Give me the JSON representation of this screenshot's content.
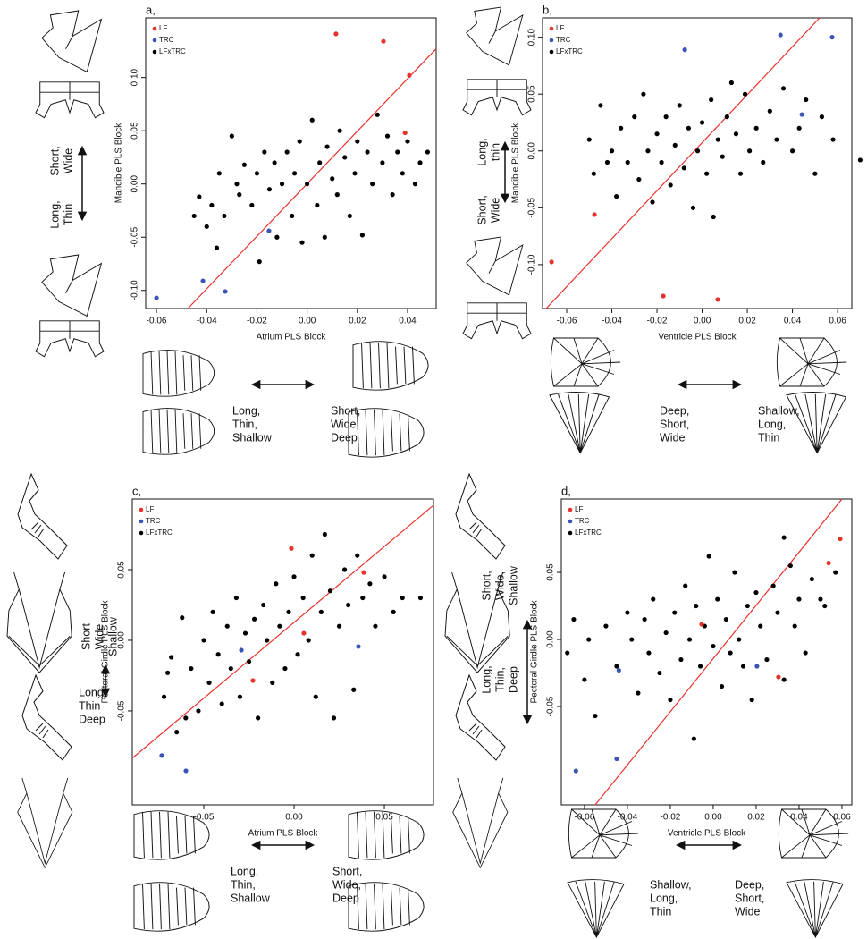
{
  "chart_data": [
    {
      "type": "scatter",
      "title": "a,",
      "xlabel": "Atrium PLS Block",
      "ylabel": "Mandible PLS Block",
      "xlim": [
        -0.0643,
        0.0514
      ],
      "ylim": [
        -0.117,
        0.156
      ],
      "xticks": [
        -0.06,
        -0.04,
        -0.02,
        {
          "value": 0,
          "label": "0.00"
        },
        0.02,
        0.04
      ],
      "yticks": [
        {
          "value": -0.1,
          "label": "-0.10"
        },
        -0.05,
        {
          "value": 0,
          "label": "0.00"
        },
        0.05,
        {
          "value": 0.1,
          "label": "0.10"
        }
      ],
      "legend": "upper left",
      "line": {
        "color": "#e8322c",
        "x": [
          -0.0475,
          0.0514
        ],
        "y": [
          -0.117,
          0.127
        ]
      },
      "series": [
        {
          "name": "LF",
          "color": "#e8322c",
          "x": [
            0.0115,
            0.0304,
            0.0407,
            0.039
          ],
          "values": [
            0.141,
            0.134,
            0.102,
            0.048
          ]
        },
        {
          "name": "TRC",
          "color": "#3a55b4",
          "x": [
            -0.06,
            -0.0415,
            -0.0326,
            -0.0152
          ],
          "values": [
            -0.107,
            -0.091,
            -0.101,
            -0.044
          ]
        },
        {
          "name": "LFxTRC",
          "color": "#000000",
          "x": [
            -0.045,
            -0.043,
            -0.04,
            -0.038,
            -0.036,
            -0.035,
            -0.033,
            -0.03,
            -0.028,
            -0.027,
            -0.025,
            -0.022,
            -0.02,
            -0.019,
            -0.017,
            -0.015,
            -0.013,
            -0.012,
            -0.01,
            -0.008,
            -0.006,
            -0.005,
            -0.003,
            -0.002,
            0,
            0.002,
            0.004,
            0.005,
            0.007,
            0.008,
            0.01,
            0.012,
            0.013,
            0.015,
            0.017,
            0.019,
            0.02,
            0.022,
            0.024,
            0.026,
            0.028,
            0.03,
            0.032,
            0.034,
            0.036,
            0.038,
            0.04,
            0.043,
            0.045,
            0.048
          ],
          "values": [
            -0.03,
            -0.012,
            -0.04,
            -0.02,
            -0.06,
            0.01,
            -0.03,
            0.045,
            0,
            -0.01,
            0.018,
            -0.02,
            0.01,
            -0.073,
            0.03,
            -0.005,
            0.02,
            -0.05,
            0,
            0.03,
            -0.03,
            0.01,
            0.04,
            -0.055,
            0,
            0.06,
            -0.02,
            0.02,
            -0.05,
            0.035,
            0.005,
            -0.01,
            0.05,
            0.025,
            -0.03,
            0.01,
            0.04,
            -0.048,
            0.03,
            0,
            0.065,
            0.02,
            0.045,
            -0.01,
            0.03,
            0.01,
            0.04,
            0,
            0.02,
            0.03
          ]
        }
      ],
      "shape_labels": [
        [
          "Short,",
          "Wide"
        ],
        [
          "Long,",
          "Thin"
        ],
        [
          "Long,",
          "Thin,",
          "Shallow"
        ],
        [
          "Short,",
          "Wide,",
          "Deep"
        ]
      ]
    },
    {
      "type": "scatter",
      "title": "b,",
      "xlabel": "Ventricle PLS Block",
      "ylabel": "Mandible PLS Block",
      "xlim": [
        -0.0707,
        0.0663
      ],
      "ylim": [
        -0.1386,
        0.117
      ],
      "xticks": [
        -0.06,
        -0.04,
        -0.02,
        {
          "value": 0,
          "label": "0.00"
        },
        0.02,
        0.04,
        0.06
      ],
      "yticks": [
        {
          "value": -0.1,
          "label": "-0.10"
        },
        -0.05,
        {
          "value": 0,
          "label": "0.00"
        },
        0.05,
        {
          "value": 0.1,
          "label": "0.10"
        }
      ],
      "legend": "upper left",
      "line": {
        "color": "#e8322c",
        "x": [
          -0.0691,
          0.052
        ],
        "y": [
          -0.1386,
          0.117
        ]
      },
      "series": [
        {
          "name": "LF",
          "color": "#e8322c",
          "x": [
            -0.0667,
            -0.0477,
            -0.0172,
            0.0069
          ],
          "values": [
            -0.0976,
            -0.056,
            -0.1276,
            -0.1307
          ]
        },
        {
          "name": "TRC",
          "color": "#3a55b4",
          "x": [
            -0.0077,
            0.0347,
            0.0576,
            0.0442
          ],
          "values": [
            0.089,
            0.102,
            0.1,
            0.032
          ]
        },
        {
          "name": "LFxTRC",
          "color": "#000000",
          "x": [
            -0.05,
            -0.048,
            -0.045,
            -0.042,
            -0.04,
            -0.038,
            -0.036,
            -0.033,
            -0.03,
            -0.028,
            -0.026,
            -0.024,
            -0.022,
            -0.02,
            -0.018,
            -0.016,
            -0.014,
            -0.012,
            -0.01,
            -0.008,
            -0.006,
            -0.004,
            -0.002,
            0,
            0.002,
            0.004,
            0.005,
            0.007,
            0.009,
            0.011,
            0.013,
            0.015,
            0.017,
            0.019,
            0.021,
            0.024,
            0.027,
            0.03,
            0.033,
            0.036,
            0.04,
            0.043,
            0.046,
            0.05,
            0.053,
            0.058,
            0.07
          ],
          "values": [
            0.01,
            -0.02,
            0.04,
            -0.01,
            0,
            -0.04,
            0.02,
            -0.01,
            0.03,
            -0.025,
            0.05,
            0,
            -0.045,
            0.015,
            -0.01,
            0.03,
            -0.03,
            0.005,
            0.04,
            -0.015,
            0.02,
            -0.05,
            0,
            0.025,
            -0.02,
            0.045,
            -0.058,
            0.01,
            -0.005,
            0.03,
            0.06,
            0.015,
            -0.02,
            0.05,
            0,
            0.02,
            -0.01,
            0.035,
            0.01,
            0.055,
            0,
            0.02,
            0.045,
            -0.02,
            0.03,
            0.01,
            -0.008
          ]
        }
      ],
      "shape_labels": [
        [
          "Long,",
          "thin"
        ],
        [
          "Short,",
          "Wide"
        ],
        [
          "Deep,",
          "Short,",
          "Wide"
        ],
        [
          "Shallow,",
          "Long,",
          "Thin"
        ]
      ]
    },
    {
      "type": "scatter",
      "title": "c,",
      "xlabel": "Atrium PLS Block",
      "ylabel": "Pectoral Girdle PLS Block",
      "xlim": [
        -0.0896,
        0.0772
      ],
      "ylim": [
        -0.1165,
        0.1
      ],
      "xticks": [
        -0.05,
        {
          "value": 0,
          "label": "0.00"
        },
        0.05
      ],
      "yticks": [
        -0.05,
        {
          "value": 0,
          "label": "0.00"
        },
        0.05
      ],
      "legend": "upper left",
      "line": {
        "color": "#e8322c",
        "x": [
          -0.0896,
          0.0772
        ],
        "y": [
          -0.0835,
          0.0956
        ]
      },
      "series": [
        {
          "name": "LF",
          "color": "#e8322c",
          "x": [
            -0.0015,
            0.0386,
            0.0054,
            -0.0228
          ],
          "values": [
            0.065,
            0.048,
            0.005,
            -0.0285
          ]
        },
        {
          "name": "TRC",
          "color": "#3a55b4",
          "x": [
            -0.0733,
            -0.0599,
            -0.0292,
            0.0356
          ],
          "values": [
            -0.0816,
            -0.0924,
            -0.007,
            -0.0044
          ]
        },
        {
          "name": "LFxTRC",
          "color": "#000000",
          "x": [
            -0.072,
            -0.07,
            -0.068,
            -0.065,
            -0.062,
            -0.06,
            -0.057,
            -0.053,
            -0.05,
            -0.047,
            -0.045,
            -0.042,
            -0.04,
            -0.037,
            -0.035,
            -0.032,
            -0.03,
            -0.027,
            -0.025,
            -0.022,
            -0.02,
            -0.017,
            -0.015,
            -0.012,
            -0.01,
            -0.008,
            -0.005,
            -0.003,
            0,
            0.002,
            0.005,
            0.008,
            0.01,
            0.012,
            0.015,
            0.017,
            0.02,
            0.022,
            0.025,
            0.028,
            0.03,
            0.033,
            0.035,
            0.038,
            0.042,
            0.045,
            0.05,
            0.055,
            0.06,
            0.07
          ],
          "values": [
            -0.04,
            -0.023,
            -0.012,
            -0.065,
            0.016,
            -0.055,
            -0.02,
            -0.05,
            0,
            -0.03,
            0.02,
            -0.01,
            -0.045,
            0.01,
            -0.02,
            0.03,
            -0.04,
            0.005,
            -0.015,
            0.015,
            -0.055,
            0.025,
            0,
            -0.03,
            0.04,
            0.01,
            -0.02,
            0.02,
            0.045,
            -0.01,
            0.03,
            0,
            0.06,
            -0.04,
            0.02,
            0.075,
            0.035,
            -0.055,
            0.01,
            0.05,
            0.025,
            -0.035,
            0.06,
            0.03,
            0.04,
            0.01,
            0.045,
            0.02,
            0.03,
            0.03
          ]
        }
      ],
      "shape_labels": [
        [
          "Short",
          "Wide",
          "Shallow"
        ],
        [
          "Long",
          "Thin",
          "Deep"
        ],
        [
          "Long,",
          "Thin,",
          "Shallow"
        ],
        [
          "Short,",
          "Wide,",
          "Deep"
        ]
      ]
    },
    {
      "type": "scatter",
      "title": "d,",
      "xlabel": "Ventricle PLS Block",
      "ylabel": "Pectoral Girdle PLS Block",
      "xlim": [
        -0.0708,
        0.0646
      ],
      "ylim": [
        -0.1233,
        0.1047
      ],
      "xticks": [
        -0.06,
        -0.04,
        -0.02,
        {
          "value": 0,
          "label": "0.00"
        },
        0.02,
        0.04,
        0.06
      ],
      "yticks": [
        -0.05,
        {
          "value": 0,
          "label": "0.00"
        },
        0.05
      ],
      "legend": "upper left",
      "line": {
        "color": "#e8322c",
        "x": [
          -0.055,
          0.06
        ],
        "y": [
          -0.1233,
          0.1047
        ]
      },
      "series": [
        {
          "name": "LF",
          "color": "#e8322c",
          "x": [
            0.0592,
            0.0538,
            0.0304,
            -0.0054
          ],
          "values": [
            0.075,
            0.057,
            -0.028,
            0.0113
          ]
        },
        {
          "name": "TRC",
          "color": "#3a55b4",
          "x": [
            -0.064,
            -0.044,
            -0.045,
            0.0204
          ],
          "values": [
            -0.098,
            -0.023,
            -0.089,
            -0.02
          ]
        },
        {
          "name": "LFxTRC",
          "color": "#000000",
          "x": [
            -0.068,
            -0.065,
            -0.06,
            -0.058,
            -0.055,
            -0.05,
            -0.045,
            -0.04,
            -0.038,
            -0.035,
            -0.032,
            -0.03,
            -0.028,
            -0.025,
            -0.022,
            -0.02,
            -0.018,
            -0.015,
            -0.013,
            -0.011,
            -0.009,
            -0.008,
            -0.006,
            -0.004,
            -0.002,
            0,
            0.002,
            0.004,
            0.006,
            0.008,
            0.01,
            0.012,
            0.014,
            0.016,
            0.018,
            0.02,
            0.022,
            0.025,
            0.028,
            0.03,
            0.033,
            0.036,
            0.038,
            0.04,
            0.043,
            0.046,
            0.05,
            0.052,
            0.057,
            0.033
          ],
          "values": [
            -0.01,
            0.015,
            -0.03,
            0,
            -0.057,
            0.01,
            -0.02,
            0.02,
            0,
            -0.04,
            0.015,
            -0.01,
            0.03,
            -0.025,
            0.005,
            -0.045,
            0.02,
            -0.015,
            0.04,
            0,
            -0.074,
            0.025,
            -0.02,
            0.01,
            0.062,
            -0.005,
            0.03,
            -0.035,
            0.015,
            -0.01,
            0.05,
            0,
            -0.02,
            0.025,
            -0.045,
            0.035,
            0.01,
            -0.015,
            0.04,
            0.02,
            -0.03,
            0.055,
            0.01,
            0.03,
            -0.01,
            0.045,
            0.03,
            0.025,
            0.05,
            0.076
          ]
        }
      ],
      "shape_labels": [
        [
          "Short,",
          "Wide,",
          "Shallow"
        ],
        [
          "Long,",
          "Thin,",
          "Deep"
        ],
        [
          "Shallow,",
          "Long,",
          "Thin"
        ],
        [
          "Deep,",
          "Short,",
          "Wide"
        ]
      ]
    }
  ]
}
